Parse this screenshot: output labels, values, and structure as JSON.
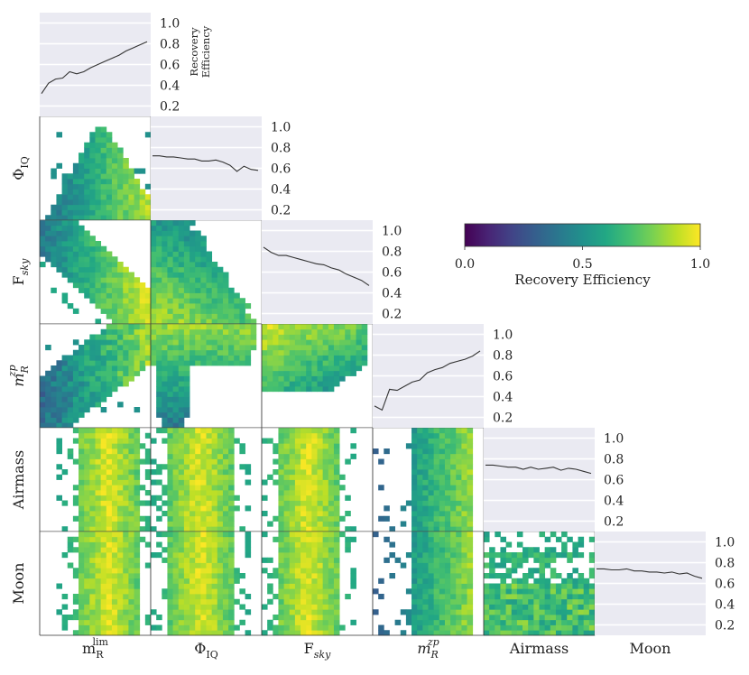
{
  "chart_data": {
    "type": "corner-plot",
    "variables": [
      {
        "id": "mlim",
        "main": "m",
        "sup": "lim",
        "sub": "R",
        "italic": false
      },
      {
        "id": "phiiq",
        "main": "Φ",
        "sub": "IQ",
        "italic": false
      },
      {
        "id": "fsky",
        "main": "F",
        "sub": "sky",
        "subItalic": true
      },
      {
        "id": "mzp",
        "main": "m",
        "sup": "zp",
        "sub": "R",
        "italic": true
      },
      {
        "id": "airmass",
        "main": "Airmass"
      },
      {
        "id": "moon",
        "main": "Moon"
      }
    ],
    "diagonal_ylabel": [
      "Recovery",
      "Efficiency"
    ],
    "diagonal_yticks": [
      "1.0",
      "0.8",
      "0.6",
      "0.4",
      "0.2"
    ],
    "diagonal_ytick_values": [
      1.0,
      0.8,
      0.6,
      0.4,
      0.2
    ],
    "diagonal_ylim": [
      0.1,
      1.1
    ],
    "diagonal_curves": [
      [
        0.32,
        0.42,
        0.46,
        0.47,
        0.53,
        0.51,
        0.53,
        0.57,
        0.6,
        0.63,
        0.66,
        0.69,
        0.73,
        0.76,
        0.79,
        0.82
      ],
      [
        0.72,
        0.72,
        0.71,
        0.71,
        0.7,
        0.69,
        0.69,
        0.67,
        0.67,
        0.68,
        0.66,
        0.63,
        0.57,
        0.62,
        0.59,
        0.58
      ],
      [
        0.84,
        0.79,
        0.76,
        0.76,
        0.74,
        0.72,
        0.7,
        0.68,
        0.67,
        0.64,
        0.62,
        0.58,
        0.55,
        0.52,
        0.47
      ],
      [
        0.31,
        0.27,
        0.47,
        0.46,
        0.5,
        0.54,
        0.56,
        0.63,
        0.66,
        0.68,
        0.72,
        0.74,
        0.76,
        0.79,
        0.84
      ],
      [
        0.74,
        0.74,
        0.73,
        0.72,
        0.72,
        0.7,
        0.72,
        0.7,
        0.71,
        0.72,
        0.69,
        0.71,
        0.7,
        0.68,
        0.66
      ],
      [
        0.74,
        0.74,
        0.73,
        0.73,
        0.74,
        0.72,
        0.72,
        0.71,
        0.71,
        0.7,
        0.71,
        0.69,
        0.7,
        0.67,
        0.65
      ]
    ],
    "colorbar": {
      "label": "Recovery Efficiency",
      "ticks": [
        "0.0",
        "0.5",
        "1.0"
      ],
      "tick_values": [
        0.0,
        0.5,
        1.0
      ],
      "range": [
        0.0,
        1.0
      ],
      "colormap": "viridis"
    },
    "offdiagonal_type": "heatmap",
    "diagonal_background": "#eaeaf2"
  }
}
